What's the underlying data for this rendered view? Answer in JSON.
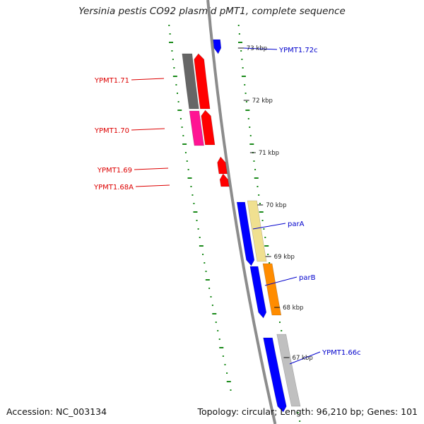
{
  "title": "Yersinia pestis CO92 plasmid pMT1, complete sequence",
  "footer": {
    "accession": "Accession: NC_003134",
    "topology": "Topology: circular; Length: 96,210 bp; Genes: 101"
  },
  "colors": {
    "backbone": "#8c8c8c",
    "tick": "#1a8a1a",
    "forward": "#0000ff",
    "reverse": "#ff0000",
    "label_forward": "#0000cc",
    "label_reverse": "#dd0000"
  },
  "scale_labels": [
    "73 kbp",
    "72 kbp",
    "71 kbp",
    "70 kbp",
    "69 kbp",
    "68 kbp",
    "67 kbp"
  ],
  "genes_reverse": [
    {
      "name": "YPMT1.71",
      "color": "#ff0000"
    },
    {
      "name": "YPMT1.70",
      "color": "#ff0000"
    },
    {
      "name": "YPMT1.69",
      "color": "#ff0000"
    },
    {
      "name": "YPMT1.68A",
      "color": "#ff0000"
    }
  ],
  "genes_forward": [
    {
      "name": "YPMT1.72c",
      "color": "#0000ff"
    },
    {
      "name": "parA",
      "color": "#0000ff"
    },
    {
      "name": "parB",
      "color": "#0000ff"
    },
    {
      "name": "YPMT1.66c",
      "color": "#0000ff"
    }
  ],
  "cog_bars": [
    {
      "color": "#666666"
    },
    {
      "color": "#ff1493"
    },
    {
      "color": "#f0e090"
    },
    {
      "color": "#ff8c00"
    },
    {
      "color": "#c0c0c0"
    }
  ]
}
